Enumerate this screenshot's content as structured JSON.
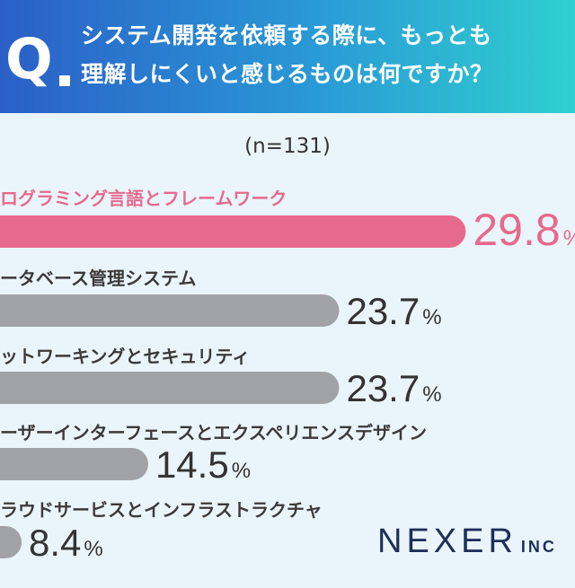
{
  "header": {
    "badge_letter": "Q",
    "question_line1": "システム開発を依頼する際に、もっとも",
    "question_line2": "理解しにくいと感じるものは何ですか？"
  },
  "sample_size": "(n=131)",
  "logo": {
    "name": "NEXER",
    "suffix": "INC"
  },
  "colors": {
    "highlight": "#e8698e",
    "bar": "#a1a2a7",
    "value_text": "#333333"
  },
  "chart_data": {
    "type": "bar",
    "orientation": "horizontal",
    "unit": "%",
    "categories": [
      "プログラミング言語とフレームワーク",
      "データベース管理システム",
      "ネットワーキングとセキュリティ",
      "ユーザーインターフェースとエクスペリエンスデザイン",
      "クラウドサービスとインフラストラクチャ"
    ],
    "values": [
      29.8,
      23.7,
      23.7,
      14.5,
      8.4
    ],
    "highlight_index": 0
  }
}
